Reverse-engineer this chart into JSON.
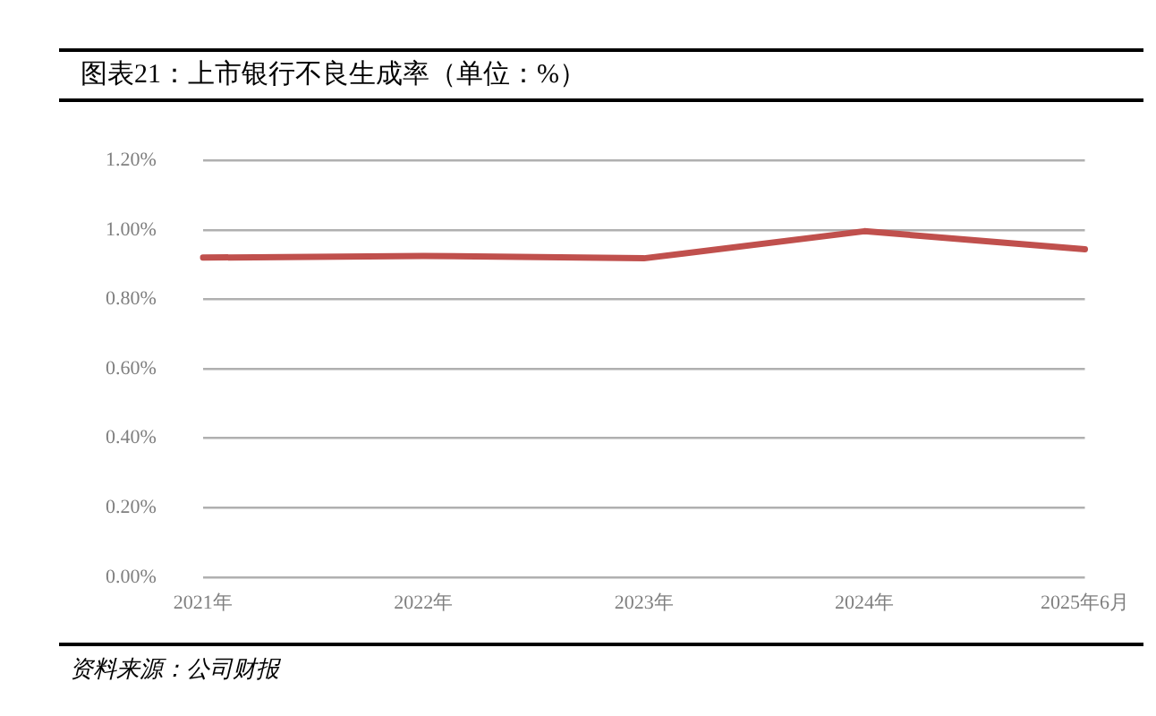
{
  "chart_data": {
    "type": "line",
    "title": "图表21：上市银行不良生成率（单位：%）",
    "categories": [
      "2021年",
      "2022年",
      "2023年",
      "2024年",
      "2025年6月"
    ],
    "series": [
      {
        "color": "#c0504d",
        "values": [
          0.92,
          0.925,
          0.918,
          0.996,
          0.944
        ]
      }
    ],
    "ylim": [
      0,
      1.2
    ],
    "yticks": [
      {
        "value": 0,
        "label": "0.00%"
      },
      {
        "value": 0.2,
        "label": "0.20%"
      },
      {
        "value": 0.4,
        "label": "0.40%"
      },
      {
        "value": 0.6,
        "label": "0.60%"
      },
      {
        "value": 0.8,
        "label": "0.80%"
      },
      {
        "value": 1,
        "label": "1.00%"
      },
      {
        "value": 1.2,
        "label": "1.20%"
      }
    ],
    "grid": "y",
    "legend": false,
    "marker": "none",
    "line_style": "solid",
    "annotations": [
      "资料来源：公司财报"
    ]
  }
}
